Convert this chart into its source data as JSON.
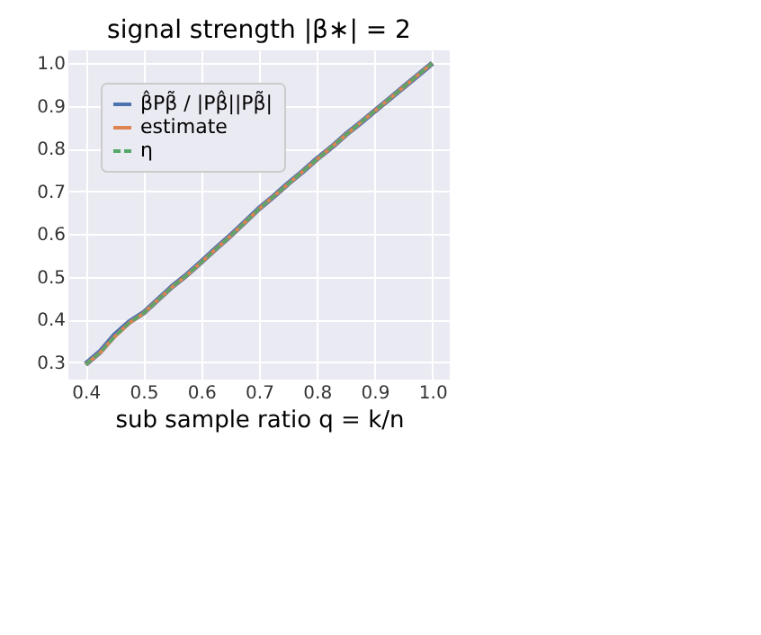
{
  "chart_data": {
    "type": "line",
    "title": "signal strength |β∗| = 2",
    "xlabel": "sub sample ratio  q = k/n",
    "x": [
      0.4,
      0.425,
      0.45,
      0.475,
      0.5,
      0.525,
      0.55,
      0.575,
      0.6,
      0.625,
      0.65,
      0.675,
      0.7,
      0.725,
      0.75,
      0.775,
      0.8,
      0.825,
      0.85,
      0.875,
      0.9,
      0.925,
      0.95,
      0.975,
      1.0
    ],
    "series": [
      {
        "name": "β̂Pβ̃ / |Pβ̂||Pβ̃|",
        "color": "#4c72b0",
        "line_style": "solid",
        "values": [
          0.296,
          0.325,
          0.364,
          0.394,
          0.416,
          0.447,
          0.478,
          0.505,
          0.535,
          0.566,
          0.596,
          0.628,
          0.66,
          0.688,
          0.718,
          0.746,
          0.776,
          0.803,
          0.833,
          0.86,
          0.888,
          0.916,
          0.944,
          0.972,
          1.0
        ]
      },
      {
        "name": "estimate",
        "color": "#dd8452",
        "line_style": "solid",
        "values": [
          0.295,
          0.323,
          0.36,
          0.392,
          0.415,
          0.446,
          0.477,
          0.504,
          0.534,
          0.565,
          0.595,
          0.627,
          0.659,
          0.688,
          0.717,
          0.746,
          0.775,
          0.803,
          0.832,
          0.86,
          0.888,
          0.916,
          0.944,
          0.972,
          1.0
        ]
      },
      {
        "name": "η",
        "color": "#55a868",
        "line_style": "dashed",
        "values": [
          0.295,
          0.323,
          0.36,
          0.392,
          0.415,
          0.446,
          0.477,
          0.504,
          0.534,
          0.565,
          0.595,
          0.627,
          0.659,
          0.688,
          0.717,
          0.746,
          0.775,
          0.803,
          0.832,
          0.86,
          0.888,
          0.916,
          0.944,
          0.972,
          1.0
        ]
      }
    ],
    "xlim": [
      0.37,
      1.03
    ],
    "xticks": [
      0.4,
      0.5,
      0.6,
      0.7,
      0.8,
      0.9,
      {
        "value": 1.0,
        "label": "1.0"
      }
    ],
    "ylim": [
      0.26,
      1.03
    ],
    "yticks": [
      0.3,
      0.4,
      0.5,
      0.6,
      0.7,
      0.8,
      0.9,
      {
        "value": 1.0,
        "label": "1.0"
      }
    ],
    "grid": true,
    "legend": "top left"
  }
}
